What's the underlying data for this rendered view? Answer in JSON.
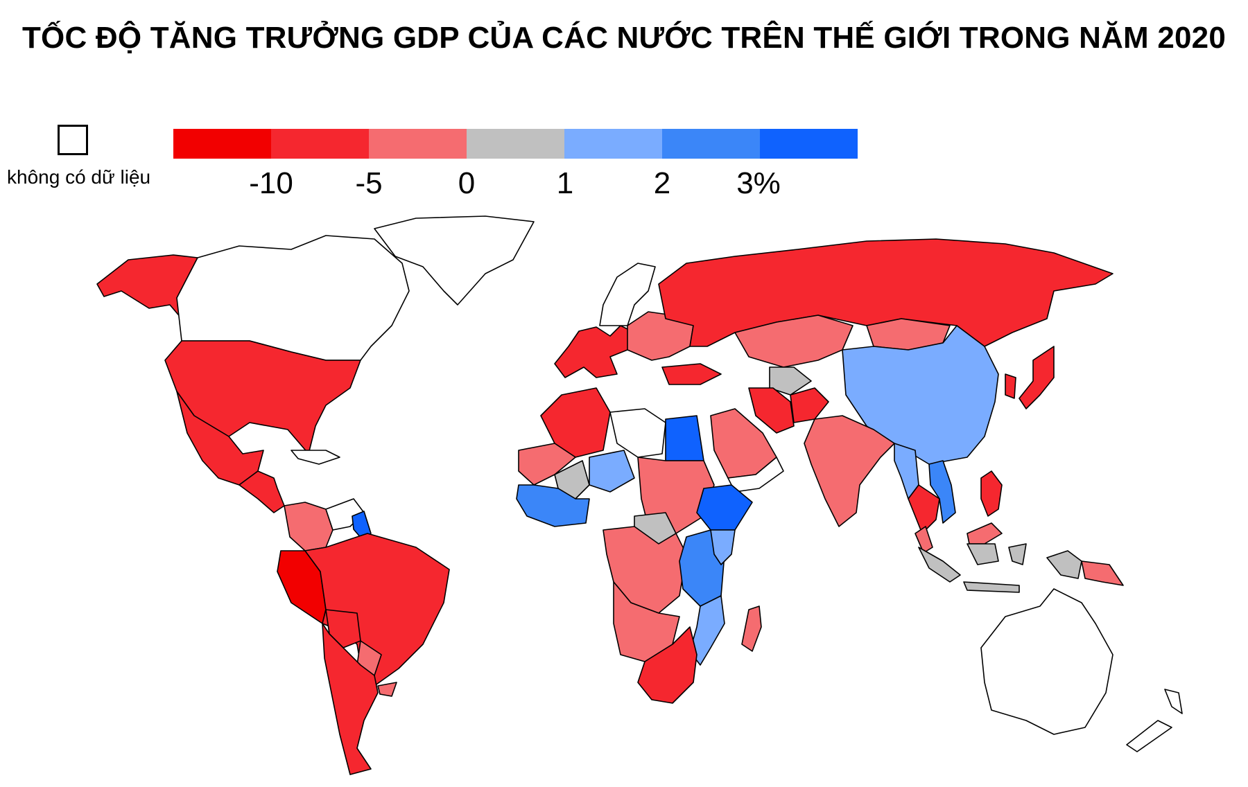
{
  "title": "TỐC ĐỘ TĂNG TRƯỞNG GDP CỦA CÁC NƯỚC TRÊN THẾ GIỚI TRONG NĂM 2020",
  "legend": {
    "no_data_label": "không có dữ liệu",
    "colors": [
      "#f20000",
      "#f5272f",
      "#f56c70",
      "#c0c0c0",
      "#7aacff",
      "#3b86f8",
      "#0f62fe"
    ],
    "ticks": [
      "-10",
      "-5",
      "0",
      "1",
      "2",
      "3%"
    ],
    "no_data_color": "#ffffff"
  },
  "map": {
    "regions": [
      {
        "name": "Alaska",
        "class": 1
      },
      {
        "name": "Canada",
        "class": null
      },
      {
        "name": "Greenland",
        "class": null
      },
      {
        "name": "United States",
        "class": 1
      },
      {
        "name": "Mexico",
        "class": 1
      },
      {
        "name": "Central America",
        "class": 1
      },
      {
        "name": "Caribbean",
        "class": null
      },
      {
        "name": "Colombia",
        "class": 2
      },
      {
        "name": "Venezuela",
        "class": null
      },
      {
        "name": "Guyana",
        "class": 6
      },
      {
        "name": "Peru",
        "class": 0
      },
      {
        "name": "Brazil",
        "class": 1
      },
      {
        "name": "Bolivia",
        "class": 1
      },
      {
        "name": "Paraguay",
        "class": 2
      },
      {
        "name": "Uruguay",
        "class": 2
      },
      {
        "name": "Argentina & Chile",
        "class": 1
      },
      {
        "name": "Western Europe",
        "class": 1
      },
      {
        "name": "Eastern Europe",
        "class": 2
      },
      {
        "name": "Scandinavia",
        "class": null
      },
      {
        "name": "Russia",
        "class": 1
      },
      {
        "name": "Kazakhstan",
        "class": 2
      },
      {
        "name": "Mongolia",
        "class": 2
      },
      {
        "name": "Uzbekistan",
        "class": 3
      },
      {
        "name": "China",
        "class": 4
      },
      {
        "name": "Japan",
        "class": 1
      },
      {
        "name": "Korea",
        "class": 1
      },
      {
        "name": "Turkey",
        "class": 1
      },
      {
        "name": "Iran",
        "class": 1
      },
      {
        "name": "Afghanistan",
        "class": 1
      },
      {
        "name": "Arabian Peninsula",
        "class": 2
      },
      {
        "name": "Yemen & Oman",
        "class": null
      },
      {
        "name": "India",
        "class": 2
      },
      {
        "name": "Myanmar",
        "class": 4
      },
      {
        "name": "Vietnam",
        "class": 5
      },
      {
        "name": "Thailand & Cambodia",
        "class": 1
      },
      {
        "name": "Philippines",
        "class": 1
      },
      {
        "name": "Malaysia",
        "class": 2
      },
      {
        "name": "Indonesia",
        "class": 3
      },
      {
        "name": "Papua New Guinea",
        "class": 2
      },
      {
        "name": "Australia",
        "class": null
      },
      {
        "name": "New Zealand",
        "class": null
      },
      {
        "name": "Morocco & Algeria",
        "class": 1
      },
      {
        "name": "Libya",
        "class": null
      },
      {
        "name": "Egypt",
        "class": 6
      },
      {
        "name": "Sudan & Chad",
        "class": 2
      },
      {
        "name": "Sahel",
        "class": 2
      },
      {
        "name": "Mali",
        "class": 3
      },
      {
        "name": "Niger",
        "class": 4
      },
      {
        "name": "West Africa",
        "class": 5
      },
      {
        "name": "Ethiopia",
        "class": 6
      },
      {
        "name": "Central Africa",
        "class": 3
      },
      {
        "name": "Congo basin",
        "class": 2
      },
      {
        "name": "East Africa",
        "class": 5
      },
      {
        "name": "Kenya",
        "class": 4
      },
      {
        "name": "Angola & Zambia",
        "class": 2
      },
      {
        "name": "Mozambique",
        "class": 4
      },
      {
        "name": "Southern Africa",
        "class": 1
      },
      {
        "name": "Madagascar",
        "class": 2
      }
    ]
  }
}
